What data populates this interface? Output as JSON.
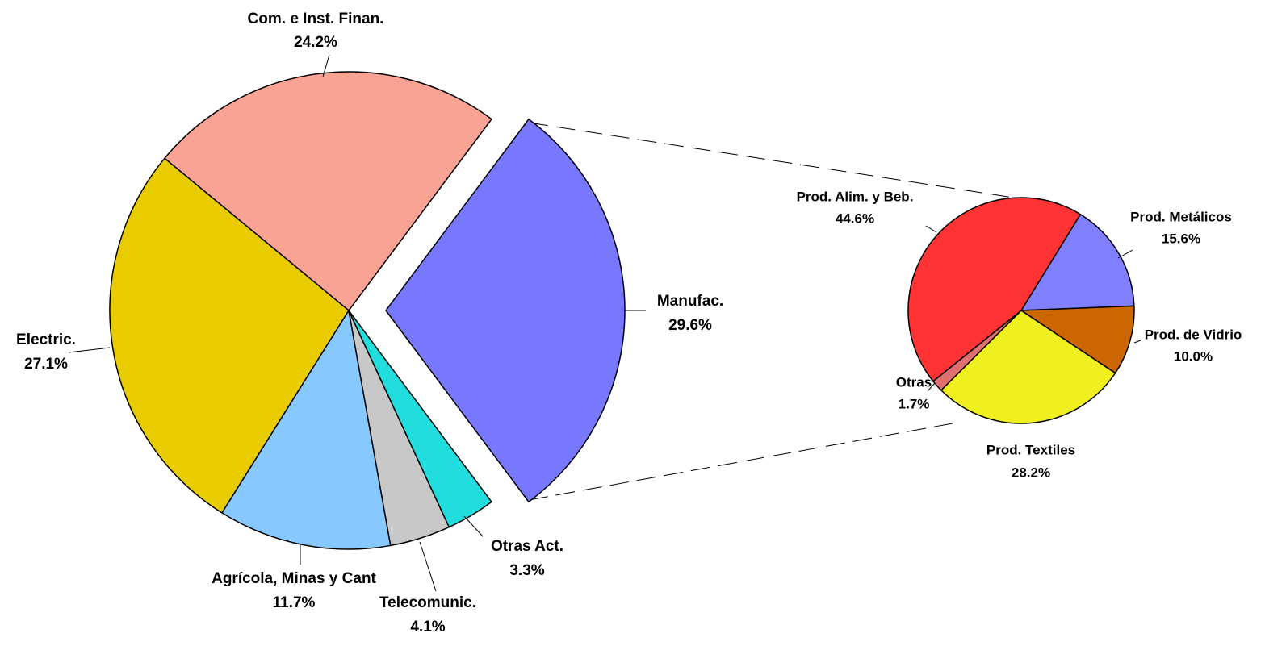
{
  "chart_data": [
    {
      "type": "pie",
      "categories": [
        "Com. e Inst. Finan.",
        "Electric.",
        "Agrícola, Minas y Cant",
        "Telecomunic.",
        "Otras Act.",
        "Manufac."
      ],
      "values": [
        24.2,
        27.1,
        11.7,
        4.1,
        3.3,
        29.6
      ],
      "value_labels": [
        "24.2%",
        "27.1%",
        "11.7%",
        "4.1%",
        "3.3%",
        "29.6%"
      ],
      "colors": [
        "#f9a394",
        "#e8cc00",
        "#87c8ff",
        "#c8c8c8",
        "#22dddd",
        "#7878ff"
      ]
    },
    {
      "type": "pie",
      "categories": [
        "Prod. Metálicos",
        "Prod. de Vidrio",
        "Prod. Textiles",
        "Otras",
        "Prod. Alim. y Beb."
      ],
      "values": [
        15.6,
        10.0,
        28.2,
        1.7,
        44.6
      ],
      "value_labels": [
        "15.6%",
        "10.0%",
        "28.2%",
        "1.7%",
        "44.6%"
      ],
      "colors": [
        "#8080ff",
        "#cc6600",
        "#f0f020",
        "#e07070",
        "#ff3333"
      ]
    }
  ]
}
